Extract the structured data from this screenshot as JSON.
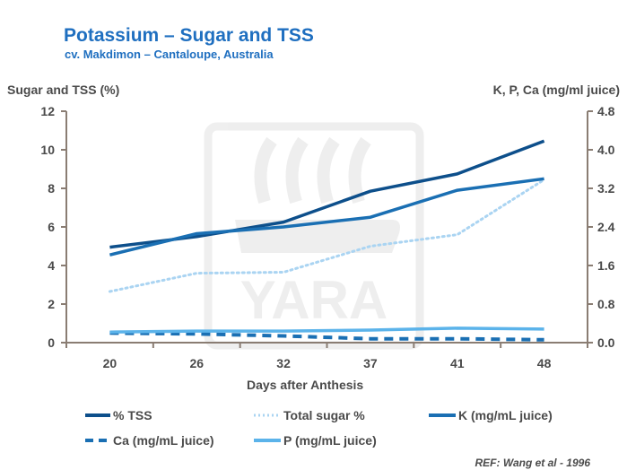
{
  "chart_data": {
    "type": "line",
    "title": "Potassium – Sugar and TSS",
    "subtitle": "cv. Makdimon – Cantaloupe, Australia",
    "xlabel": "Days after Anthesis",
    "ylabel_left": "Sugar and TSS (%)",
    "ylabel_right": "K, P, Ca (mg/ml juice)",
    "categories": [
      "20",
      "26",
      "32",
      "37",
      "41",
      "48"
    ],
    "ylim_left": [
      0,
      12
    ],
    "yticks_left": [
      "0",
      "2",
      "4",
      "6",
      "8",
      "10",
      "12"
    ],
    "ylim_right": [
      0,
      4.8
    ],
    "yticks_right": [
      "0.0",
      "0.8",
      "1.6",
      "2.4",
      "3.2",
      "4.0",
      "4.8"
    ],
    "series": [
      {
        "name": "% TSS",
        "axis": "left",
        "values": [
          4.95,
          5.5,
          6.25,
          7.85,
          8.75,
          10.45
        ],
        "color": "#0d4f8b",
        "style": "solid"
      },
      {
        "name": "Total sugar %",
        "axis": "left",
        "values": [
          2.65,
          3.6,
          3.65,
          5.0,
          5.6,
          8.45
        ],
        "color": "#aad4f2",
        "style": "dotted"
      },
      {
        "name": "K (mg/mL juice)",
        "axis": "right",
        "values": [
          1.82,
          2.26,
          2.4,
          2.6,
          3.16,
          3.4
        ],
        "color": "#1a6fb3",
        "style": "solid"
      },
      {
        "name": "Ca (mg/mL juice)",
        "axis": "right",
        "values": [
          0.2,
          0.18,
          0.14,
          0.08,
          0.08,
          0.06
        ],
        "color": "#1a6fb3",
        "style": "dashed"
      },
      {
        "name": "P (mg/mL juice)",
        "axis": "right",
        "values": [
          0.22,
          0.24,
          0.24,
          0.26,
          0.3,
          0.28
        ],
        "color": "#5bb3ea",
        "style": "solid"
      }
    ],
    "watermark": "YARA",
    "reference": "REF: Wang et al - 1996"
  }
}
